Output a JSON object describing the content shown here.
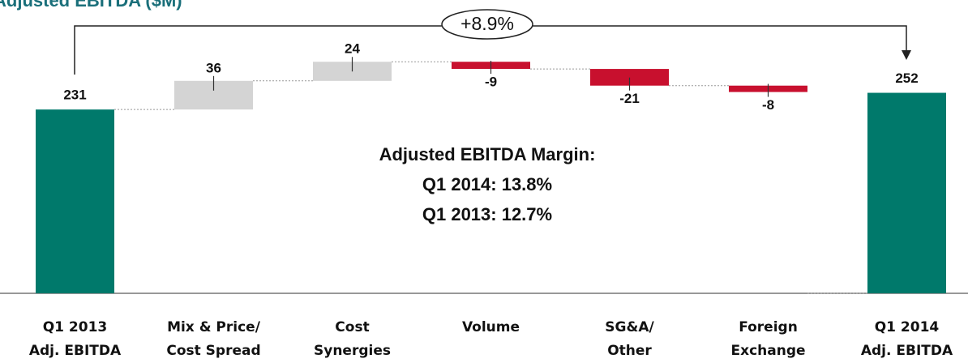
{
  "chart_data": {
    "type": "waterfall",
    "title": "Adjusted EBITDA ($M)",
    "categories": [
      [
        "Q1 2013",
        "Adj. EBITDA"
      ],
      [
        "Mix & Price/",
        "Cost Spread"
      ],
      [
        "Cost",
        "Synergies"
      ],
      [
        "Volume"
      ],
      [
        "SG&A/",
        "Other"
      ],
      [
        "Foreign",
        "Exchange"
      ],
      [
        "Q1 2014",
        "Adj. EBITDA"
      ]
    ],
    "values": [
      231,
      36,
      24,
      -9,
      -21,
      -8,
      252
    ],
    "totals": [
      true,
      false,
      false,
      false,
      false,
      false,
      true
    ],
    "colors": {
      "total": "#00796b",
      "increase": "#d4d4d4",
      "decrease": "#c8102e"
    },
    "annotations": {
      "change": "+8.9%",
      "margin": [
        "Adjusted EBITDA Margin:",
        "Q1 2014: 13.8%",
        "Q1 2013: 12.7%"
      ]
    }
  }
}
